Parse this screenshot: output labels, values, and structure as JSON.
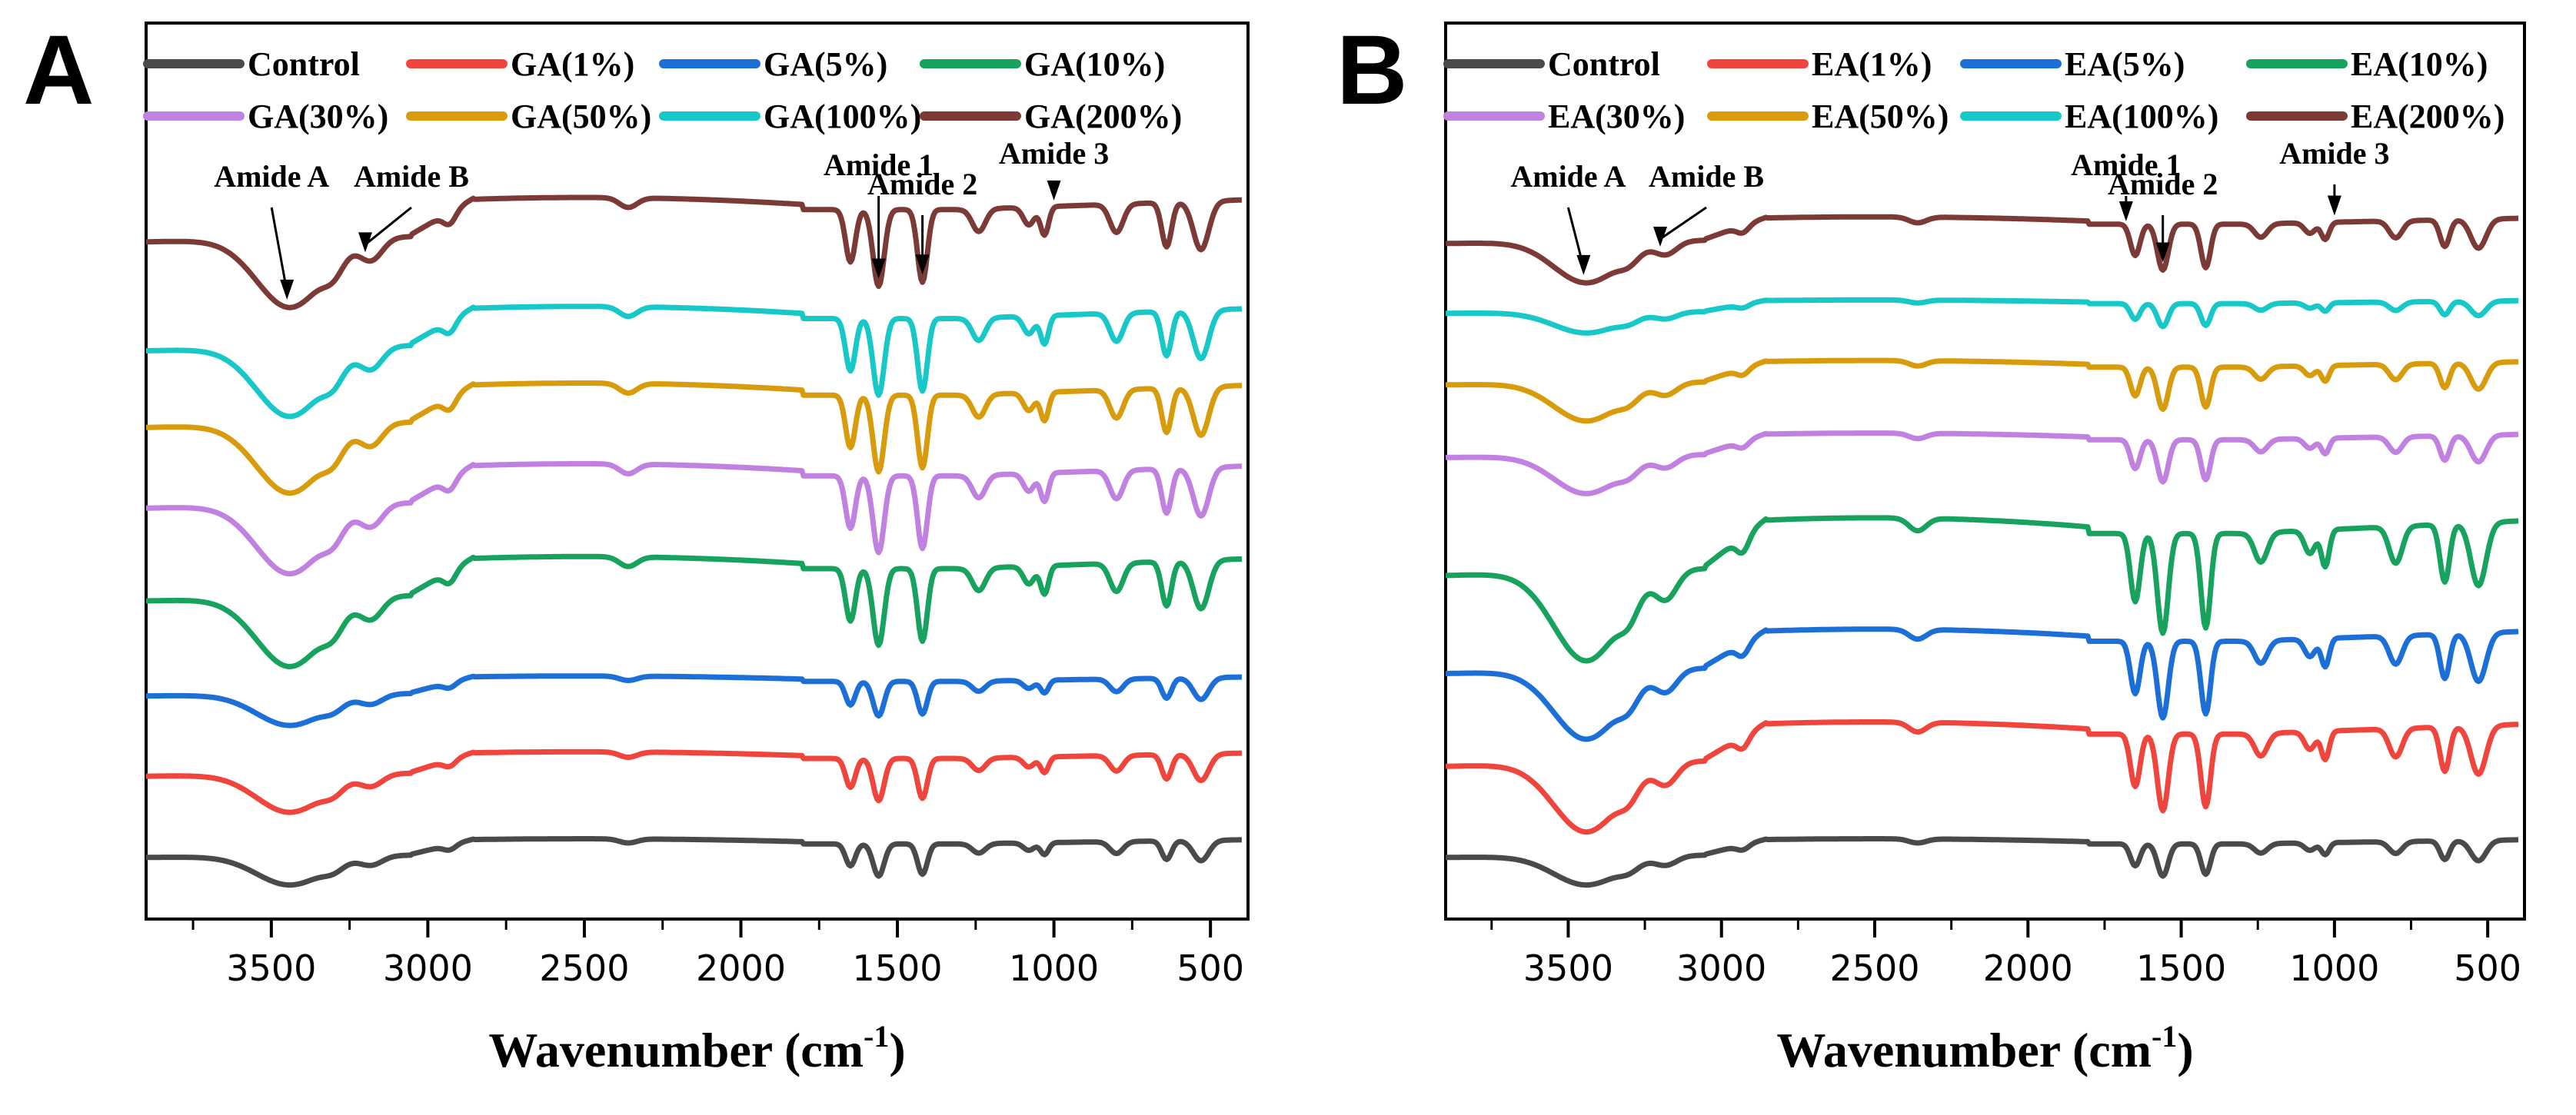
{
  "chart_data": [
    {
      "panel_label": "A",
      "type": "line",
      "xlabel_main": "Wavenumber (cm",
      "xlabel_sup": "-1",
      "xlabel_close": ")",
      "ylabel": "",
      "xlim": [
        3900,
        380
      ],
      "xticks": [
        3500,
        3000,
        2500,
        2000,
        1500,
        1000,
        500
      ],
      "yticks": [],
      "legend_position": "top",
      "annotations": [
        {
          "text": "Amide A",
          "x": 3450
        },
        {
          "text": "Amide B",
          "x": 3200
        },
        {
          "text": "Amide 1",
          "x": 1560
        },
        {
          "text": "Amide 2",
          "x": 1420
        },
        {
          "text": "Amide 3",
          "x": 1000
        }
      ],
      "x": [
        3900,
        3800,
        3700,
        3600,
        3550,
        3500,
        3450,
        3400,
        3350,
        3300,
        3250,
        3200,
        3150,
        3100,
        3050,
        3000,
        2950,
        2900,
        2800,
        2700,
        2600,
        2500,
        2400,
        2300,
        2200,
        2100,
        2000,
        1900,
        1800,
        1750,
        1700,
        1680,
        1660,
        1640,
        1620,
        1600,
        1580,
        1560,
        1540,
        1520,
        1500,
        1480,
        1460,
        1440,
        1420,
        1400,
        1380,
        1350,
        1300,
        1250,
        1200,
        1150,
        1100,
        1080,
        1050,
        1030,
        1020,
        1000,
        950,
        900,
        850,
        800,
        780,
        750,
        700,
        670,
        650,
        630,
        600,
        570,
        550,
        530,
        500,
        450,
        400
      ],
      "series": [
        {
          "name": "Control",
          "color": "#4a4a4a",
          "offset": 0.0,
          "scale": 0.42
        },
        {
          "name": "GA(1%)",
          "color": "#f0453c",
          "offset": 1.0,
          "scale": 0.55
        },
        {
          "name": "GA(5%)",
          "color": "#1d6fd8",
          "offset": 2.0,
          "scale": 0.45
        },
        {
          "name": "GA(10%)",
          "color": "#17a25e",
          "offset": 3.15,
          "scale": 1.0
        },
        {
          "name": "GA(30%)",
          "color": "#c081e0",
          "offset": 4.3,
          "scale": 1.0
        },
        {
          "name": "GA(50%)",
          "color": "#d79b0c",
          "offset": 5.3,
          "scale": 1.0
        },
        {
          "name": "GA(100%)",
          "color": "#18c8c8",
          "offset": 6.25,
          "scale": 1.0
        },
        {
          "name": "GA(200%)",
          "color": "#7b3a36",
          "offset": 7.6,
          "scale": 1.0
        }
      ]
    },
    {
      "panel_label": "B",
      "type": "line",
      "xlabel_main": "Wavenumber (cm",
      "xlabel_sup": "-1",
      "xlabel_close": ")",
      "ylabel": "",
      "xlim": [
        3900,
        380
      ],
      "xticks": [
        3500,
        3000,
        2500,
        2000,
        1500,
        1000,
        500
      ],
      "yticks": [],
      "legend_position": "top",
      "annotations": [
        {
          "text": "Amide A",
          "x": 3450
        },
        {
          "text": "Amide B",
          "x": 3200
        },
        {
          "text": "Amide 1",
          "x": 1680
        },
        {
          "text": "Amide 2",
          "x": 1560
        },
        {
          "text": "Amide 3",
          "x": 1000
        }
      ],
      "x": [
        3900,
        3800,
        3700,
        3600,
        3550,
        3500,
        3450,
        3400,
        3350,
        3300,
        3250,
        3200,
        3150,
        3100,
        3050,
        3000,
        2950,
        2900,
        2800,
        2700,
        2600,
        2500,
        2400,
        2300,
        2200,
        2100,
        2000,
        1900,
        1800,
        1750,
        1700,
        1680,
        1660,
        1640,
        1620,
        1600,
        1580,
        1560,
        1540,
        1520,
        1500,
        1480,
        1460,
        1440,
        1420,
        1400,
        1380,
        1350,
        1300,
        1250,
        1200,
        1150,
        1100,
        1080,
        1050,
        1030,
        1020,
        1000,
        950,
        900,
        850,
        800,
        780,
        750,
        700,
        670,
        650,
        630,
        600,
        570,
        550,
        530,
        500,
        450,
        400
      ],
      "series": [
        {
          "name": "Control",
          "color": "#4a4a4a",
          "offset": 0.0,
          "scale": 0.42
        },
        {
          "name": "EA(1%)",
          "color": "#f0453c",
          "offset": 1.1,
          "scale": 1.0
        },
        {
          "name": "EA(5%)",
          "color": "#1d6fd8",
          "offset": 2.25,
          "scale": 1.0
        },
        {
          "name": "EA(10%)",
          "color": "#17a25e",
          "offset": 3.45,
          "scale": 1.3
        },
        {
          "name": "EA(30%)",
          "color": "#c081e0",
          "offset": 4.95,
          "scale": 0.55
        },
        {
          "name": "EA(50%)",
          "color": "#d79b0c",
          "offset": 5.85,
          "scale": 0.55
        },
        {
          "name": "EA(100%)",
          "color": "#18c8c8",
          "offset": 6.75,
          "scale": 0.3
        },
        {
          "name": "EA(200%)",
          "color": "#7b3a36",
          "offset": 7.6,
          "scale": 0.6
        }
      ]
    }
  ]
}
